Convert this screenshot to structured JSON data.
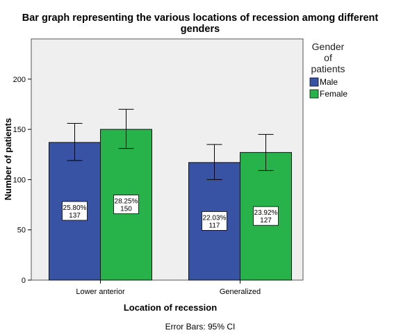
{
  "chart_data": {
    "type": "bar",
    "title_lines": [
      "Bar graph representing the various locations of recession among different",
      "genders"
    ],
    "xlabel": "Location of recession",
    "ylabel": "Number of patients",
    "categories": [
      "Lower anterior",
      "Generalized"
    ],
    "series": [
      {
        "name": "Male",
        "color": "#3953a4",
        "values": [
          137,
          117
        ],
        "ci_lower": [
          119,
          100
        ],
        "ci_upper": [
          156,
          135
        ],
        "percent_labels": [
          "25.80%",
          "22.03%"
        ],
        "count_labels": [
          "137",
          "117"
        ]
      },
      {
        "name": "Female",
        "color": "#28b34a",
        "values": [
          150,
          127
        ],
        "ci_lower": [
          131,
          109
        ],
        "ci_upper": [
          170,
          145
        ],
        "percent_labels": [
          "28.25%",
          "23.92%"
        ],
        "count_labels": [
          "150",
          "127"
        ]
      }
    ],
    "ylim": [
      0,
      240
    ],
    "yticks": [
      "0",
      "50",
      "100",
      "150",
      "200"
    ],
    "legend": {
      "title_lines": [
        "Gender",
        "of",
        "patients"
      ],
      "placement": "right"
    },
    "footnote": "Error Bars: 95% CI",
    "plot_background": "#efefef",
    "grid": false
  }
}
